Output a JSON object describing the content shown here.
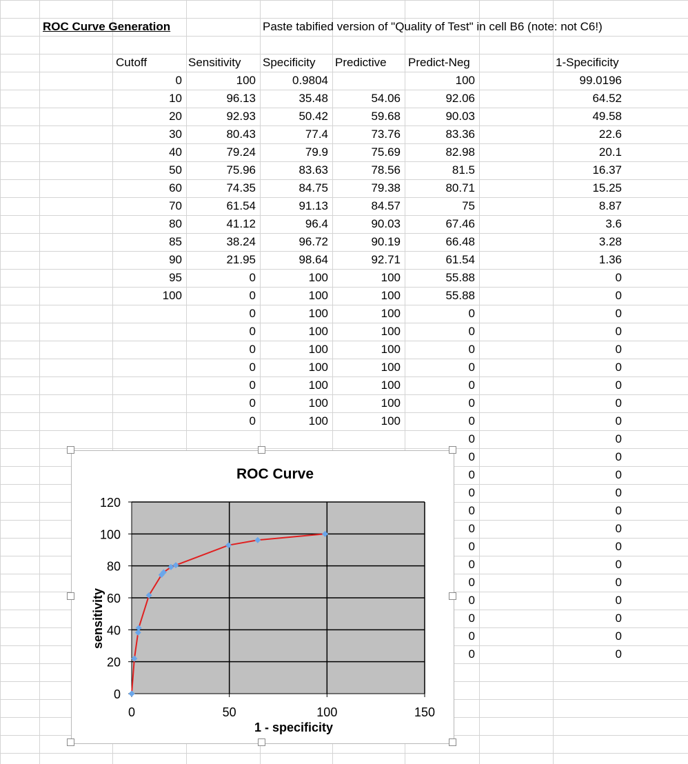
{
  "sheet": {
    "title": "ROC Curve Generation",
    "note": "Paste tabified version of \"Quality of Test\" in cell B6  (note: not C6!)",
    "headers": [
      "Cutoff",
      "Sensitivity",
      "Specificity",
      "Predictive",
      "Predict-Neg",
      "1-Specificity"
    ],
    "rows": [
      [
        "0",
        "100",
        "0.9804",
        "",
        "100",
        "99.0196"
      ],
      [
        "10",
        "96.13",
        "35.48",
        "54.06",
        "92.06",
        "64.52"
      ],
      [
        "20",
        "92.93",
        "50.42",
        "59.68",
        "90.03",
        "49.58"
      ],
      [
        "30",
        "80.43",
        "77.4",
        "73.76",
        "83.36",
        "22.6"
      ],
      [
        "40",
        "79.24",
        "79.9",
        "75.69",
        "82.98",
        "20.1"
      ],
      [
        "50",
        "75.96",
        "83.63",
        "78.56",
        "81.5",
        "16.37"
      ],
      [
        "60",
        "74.35",
        "84.75",
        "79.38",
        "80.71",
        "15.25"
      ],
      [
        "70",
        "61.54",
        "91.13",
        "84.57",
        "75",
        "8.87"
      ],
      [
        "80",
        "41.12",
        "96.4",
        "90.03",
        "67.46",
        "3.6"
      ],
      [
        "85",
        "38.24",
        "96.72",
        "90.19",
        "66.48",
        "3.28"
      ],
      [
        "90",
        "21.95",
        "98.64",
        "92.71",
        "61.54",
        "1.36"
      ],
      [
        "95",
        "0",
        "100",
        "100",
        "55.88",
        "0"
      ],
      [
        "100",
        "0",
        "100",
        "100",
        "55.88",
        "0"
      ],
      [
        "",
        "0",
        "100",
        "100",
        "0",
        "0"
      ],
      [
        "",
        "0",
        "100",
        "100",
        "0",
        "0"
      ],
      [
        "",
        "0",
        "100",
        "100",
        "0",
        "0"
      ],
      [
        "",
        "0",
        "100",
        "100",
        "0",
        "0"
      ],
      [
        "",
        "0",
        "100",
        "100",
        "0",
        "0"
      ],
      [
        "",
        "0",
        "100",
        "100",
        "0",
        "0"
      ],
      [
        "",
        "0",
        "100",
        "100",
        "0",
        "0"
      ],
      [
        "",
        "",
        "",
        "",
        "0",
        "0"
      ],
      [
        "",
        "",
        "",
        "",
        "0",
        "0"
      ],
      [
        "",
        "",
        "",
        "",
        "0",
        "0"
      ],
      [
        "",
        "",
        "",
        "",
        "0",
        "0"
      ],
      [
        "",
        "",
        "",
        "",
        "0",
        "0"
      ],
      [
        "",
        "",
        "",
        "",
        "0",
        "0"
      ],
      [
        "",
        "",
        "",
        "",
        "0",
        "0"
      ],
      [
        "",
        "",
        "",
        "",
        "0",
        "0"
      ],
      [
        "",
        "",
        "",
        "",
        "0",
        "0"
      ],
      [
        "",
        "",
        "",
        "",
        "0",
        "0"
      ],
      [
        "",
        "",
        "",
        "",
        "0",
        "0"
      ],
      [
        "",
        "",
        "",
        "",
        "0",
        "0"
      ],
      [
        "",
        "",
        "",
        "",
        "0",
        "0"
      ]
    ]
  },
  "chart_data": {
    "type": "scatter",
    "title": "ROC Curve",
    "xlabel": "1 - specificity",
    "ylabel": "sensitivity",
    "xlim": [
      0,
      150
    ],
    "ylim": [
      0,
      120
    ],
    "xticks": [
      "0",
      "50",
      "100",
      "150"
    ],
    "yticks": [
      "0",
      "20",
      "40",
      "60",
      "80",
      "100",
      "120"
    ],
    "grid": true,
    "legend": "none",
    "plot_bg": "#c0c0c0",
    "line_color": "#e02020",
    "marker_color": "#6aa6ea",
    "series": [
      {
        "x": [
          99.0196,
          64.52,
          49.58,
          22.6,
          20.1,
          16.37,
          15.25,
          8.87,
          3.6,
          3.28,
          1.36,
          0,
          0
        ],
        "y": [
          100,
          96.13,
          92.93,
          80.43,
          79.24,
          75.96,
          74.35,
          61.54,
          41.12,
          38.24,
          21.95,
          0,
          0
        ]
      }
    ]
  }
}
